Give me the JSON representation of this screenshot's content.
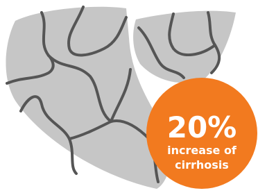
{
  "badge": {
    "value": "20%",
    "line1": "increase of",
    "line2": "cirrhosis"
  }
}
